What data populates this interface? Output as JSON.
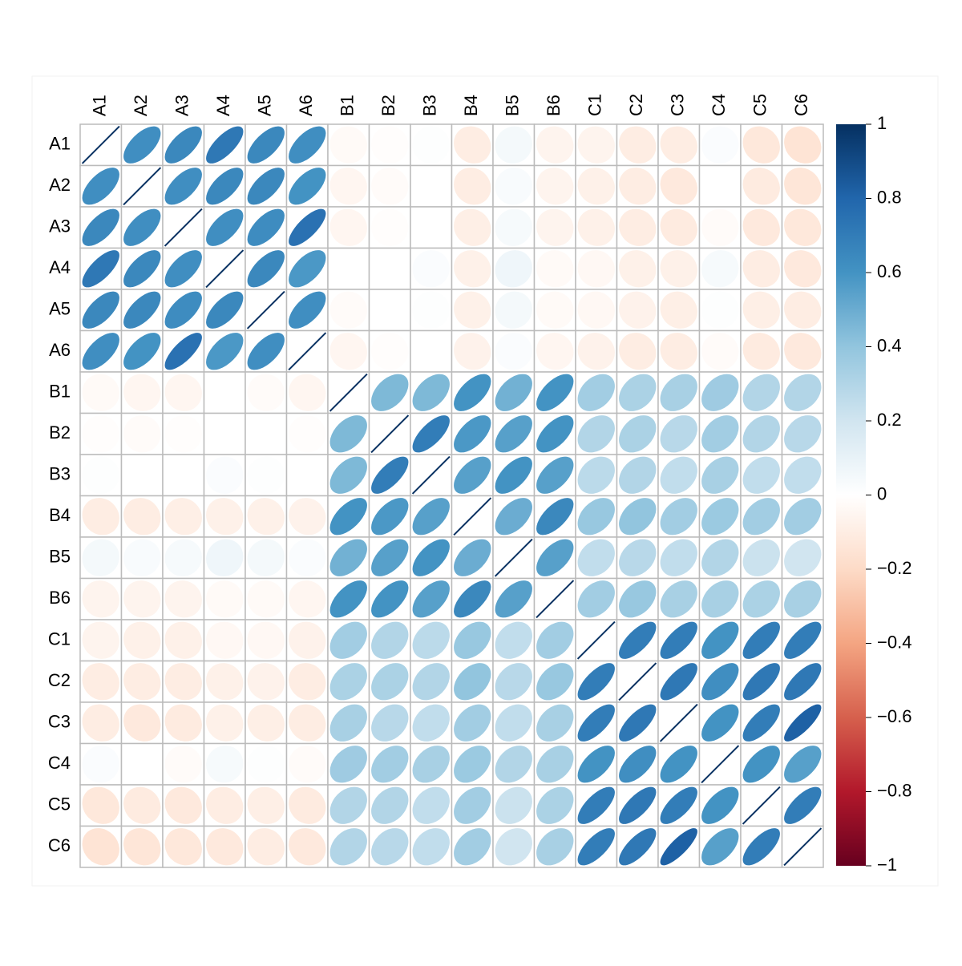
{
  "chart_data": {
    "type": "corrplot-ellipse",
    "categories": [
      "A1",
      "A2",
      "A3",
      "A4",
      "A5",
      "A6",
      "B1",
      "B2",
      "B3",
      "B4",
      "B5",
      "B6",
      "C1",
      "C2",
      "C3",
      "C4",
      "C5",
      "C6"
    ],
    "values": [
      [
        1,
        0.62,
        0.65,
        0.72,
        0.65,
        0.62,
        -0.03,
        -0.01,
        0.01,
        -0.1,
        0.05,
        -0.06,
        -0.06,
        -0.1,
        -0.1,
        0.02,
        -0.13,
        -0.15
      ],
      [
        0.62,
        1,
        0.62,
        0.65,
        0.65,
        0.6,
        -0.05,
        -0.02,
        0,
        -0.1,
        0.03,
        -0.06,
        -0.08,
        -0.1,
        -0.12,
        0,
        -0.11,
        -0.14
      ],
      [
        0.65,
        0.62,
        1,
        0.62,
        0.63,
        0.75,
        -0.05,
        -0.01,
        0,
        -0.09,
        0.04,
        -0.06,
        -0.08,
        -0.1,
        -0.11,
        -0.02,
        -0.12,
        -0.13
      ],
      [
        0.72,
        0.65,
        0.62,
        1,
        0.65,
        0.58,
        0,
        0,
        0.02,
        -0.08,
        0.07,
        -0.03,
        -0.04,
        -0.08,
        -0.08,
        0.04,
        -0.1,
        -0.12
      ],
      [
        0.65,
        0.65,
        0.63,
        0.65,
        1,
        0.62,
        -0.02,
        0,
        0.01,
        -0.08,
        0.05,
        -0.03,
        -0.04,
        -0.07,
        -0.09,
        0.01,
        -0.09,
        -0.1
      ],
      [
        0.62,
        0.6,
        0.75,
        0.58,
        0.62,
        1,
        -0.05,
        -0.01,
        0,
        -0.07,
        0.02,
        -0.05,
        -0.07,
        -0.1,
        -0.1,
        -0.02,
        -0.11,
        -0.12
      ],
      [
        -0.03,
        -0.05,
        -0.05,
        0,
        -0.02,
        -0.05,
        1,
        0.45,
        0.45,
        0.6,
        0.48,
        0.6,
        0.35,
        0.32,
        0.33,
        0.36,
        0.3,
        0.3
      ],
      [
        -0.01,
        -0.02,
        -0.01,
        0,
        0,
        -0.01,
        0.45,
        1,
        0.7,
        0.58,
        0.55,
        0.6,
        0.3,
        0.32,
        0.28,
        0.35,
        0.3,
        0.28
      ],
      [
        0.01,
        0,
        0,
        0.02,
        0.01,
        0,
        0.45,
        0.7,
        1,
        0.55,
        0.6,
        0.55,
        0.27,
        0.3,
        0.25,
        0.33,
        0.25,
        0.25
      ],
      [
        -0.1,
        -0.1,
        -0.09,
        -0.08,
        -0.08,
        -0.07,
        0.6,
        0.58,
        0.55,
        1,
        0.5,
        0.65,
        0.38,
        0.4,
        0.35,
        0.37,
        0.35,
        0.35
      ],
      [
        0.05,
        0.03,
        0.04,
        0.07,
        0.05,
        0.02,
        0.48,
        0.55,
        0.6,
        0.5,
        1,
        0.55,
        0.25,
        0.28,
        0.25,
        0.3,
        0.22,
        0.2
      ],
      [
        -0.06,
        -0.06,
        -0.06,
        -0.03,
        -0.03,
        -0.05,
        0.6,
        0.6,
        0.55,
        0.65,
        0.55,
        1,
        0.35,
        0.38,
        0.33,
        0.33,
        0.32,
        0.33
      ],
      [
        -0.06,
        -0.08,
        -0.08,
        -0.04,
        -0.04,
        -0.07,
        0.35,
        0.3,
        0.27,
        0.38,
        0.25,
        0.35,
        1,
        0.7,
        0.7,
        0.6,
        0.7,
        0.7
      ],
      [
        -0.1,
        -0.1,
        -0.1,
        -0.08,
        -0.07,
        -0.1,
        0.32,
        0.32,
        0.3,
        0.4,
        0.28,
        0.38,
        0.7,
        1,
        0.72,
        0.62,
        0.72,
        0.72
      ],
      [
        -0.1,
        -0.12,
        -0.11,
        -0.08,
        -0.09,
        -0.1,
        0.33,
        0.28,
        0.25,
        0.35,
        0.25,
        0.33,
        0.7,
        0.72,
        1,
        0.6,
        0.7,
        0.82
      ],
      [
        0.02,
        0,
        -0.02,
        0.04,
        0.01,
        -0.02,
        0.36,
        0.35,
        0.33,
        0.37,
        0.3,
        0.33,
        0.6,
        0.62,
        0.6,
        1,
        0.6,
        0.55
      ],
      [
        -0.13,
        -0.11,
        -0.12,
        -0.1,
        -0.09,
        -0.11,
        0.3,
        0.3,
        0.25,
        0.35,
        0.22,
        0.32,
        0.7,
        0.72,
        0.7,
        0.6,
        1,
        0.7
      ],
      [
        -0.15,
        -0.14,
        -0.13,
        -0.12,
        -0.1,
        -0.12,
        0.3,
        0.28,
        0.25,
        0.35,
        0.2,
        0.33,
        0.7,
        0.72,
        0.82,
        0.55,
        0.7,
        1
      ]
    ],
    "zlim": [
      -1,
      1
    ],
    "zticks": [
      {
        "value": -1,
        "label": "−1"
      },
      {
        "value": -0.8,
        "label": "−0.8"
      },
      {
        "value": -0.6,
        "label": "−0.6"
      },
      {
        "value": -0.4,
        "label": "−0.4"
      },
      {
        "value": -0.2,
        "label": "−0.2"
      },
      0,
      0.2,
      0.4,
      0.6,
      0.8,
      1
    ],
    "colorscale": [
      "#67001F",
      "#B2182B",
      "#D6604D",
      "#F4A582",
      "#FDDBC7",
      "#FFFFFF",
      "#D1E5F0",
      "#92C5DE",
      "#4393C3",
      "#2166AC",
      "#053061"
    ],
    "grid_color": "#bbbbbb"
  }
}
